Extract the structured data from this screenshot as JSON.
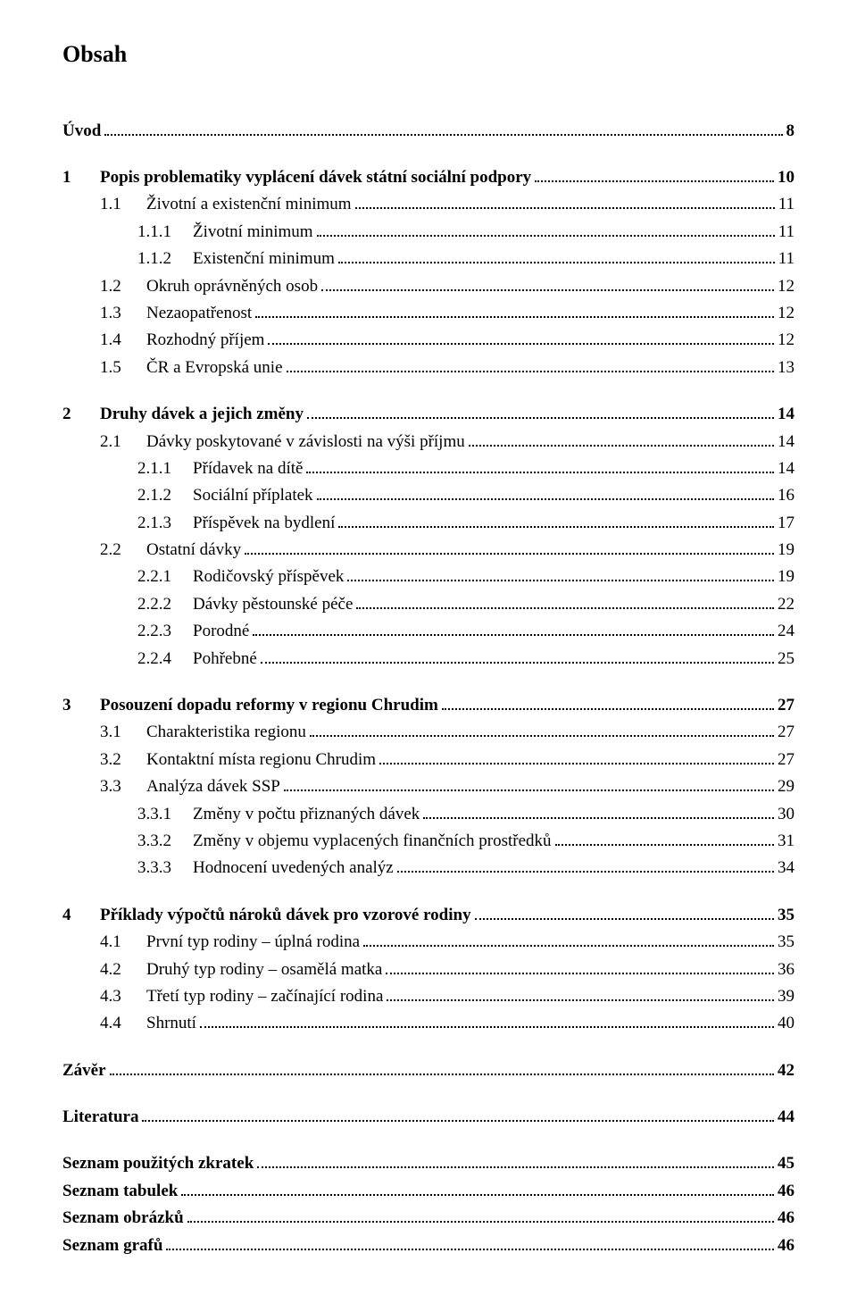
{
  "title": "Obsah",
  "entries": [
    {
      "num": "",
      "label": "Úvod",
      "page": "8",
      "bold": true,
      "indent": 0,
      "gapBefore": true
    },
    {
      "num": "1",
      "label": "Popis problematiky vyplácení dávek státní sociální podpory",
      "page": "10",
      "bold": true,
      "indent": 0,
      "gapBefore": true
    },
    {
      "num": "1.1",
      "label": "Životní a existenční minimum",
      "page": "11",
      "bold": false,
      "indent": 1
    },
    {
      "num": "1.1.1",
      "label": "Životní minimum",
      "page": "11",
      "bold": false,
      "indent": 2
    },
    {
      "num": "1.1.2",
      "label": "Existenční minimum",
      "page": "11",
      "bold": false,
      "indent": 2
    },
    {
      "num": "1.2",
      "label": "Okruh oprávněných osob",
      "page": "12",
      "bold": false,
      "indent": 1
    },
    {
      "num": "1.3",
      "label": "Nezaopatřenost",
      "page": "12",
      "bold": false,
      "indent": 1
    },
    {
      "num": "1.4",
      "label": "Rozhodný příjem",
      "page": "12",
      "bold": false,
      "indent": 1
    },
    {
      "num": "1.5",
      "label": "ČR a Evropská unie",
      "page": "13",
      "bold": false,
      "indent": 1
    },
    {
      "num": "2",
      "label": "Druhy dávek a jejich změny",
      "page": "14",
      "bold": true,
      "indent": 0,
      "gapBefore": true
    },
    {
      "num": "2.1",
      "label": "Dávky poskytované v závislosti na výši příjmu",
      "page": "14",
      "bold": false,
      "indent": 1
    },
    {
      "num": "2.1.1",
      "label": "Přídavek na dítě",
      "page": "14",
      "bold": false,
      "indent": 2
    },
    {
      "num": "2.1.2",
      "label": "Sociální příplatek",
      "page": "16",
      "bold": false,
      "indent": 2
    },
    {
      "num": "2.1.3",
      "label": "Příspěvek na bydlení",
      "page": "17",
      "bold": false,
      "indent": 2
    },
    {
      "num": "2.2",
      "label": "Ostatní dávky",
      "page": "19",
      "bold": false,
      "indent": 1
    },
    {
      "num": "2.2.1",
      "label": "Rodičovský příspěvek",
      "page": "19",
      "bold": false,
      "indent": 2
    },
    {
      "num": "2.2.2",
      "label": "Dávky pěstounské péče",
      "page": "22",
      "bold": false,
      "indent": 2
    },
    {
      "num": "2.2.3",
      "label": "Porodné",
      "page": "24",
      "bold": false,
      "indent": 2
    },
    {
      "num": "2.2.4",
      "label": "Pohřebné",
      "page": "25",
      "bold": false,
      "indent": 2
    },
    {
      "num": "3",
      "label": "Posouzení dopadu reformy v regionu Chrudim",
      "page": "27",
      "bold": true,
      "indent": 0,
      "gapBefore": true
    },
    {
      "num": "3.1",
      "label": "Charakteristika regionu",
      "page": "27",
      "bold": false,
      "indent": 1
    },
    {
      "num": "3.2",
      "label": "Kontaktní místa regionu Chrudim",
      "page": "27",
      "bold": false,
      "indent": 1
    },
    {
      "num": "3.3",
      "label": "Analýza dávek SSP",
      "page": "29",
      "bold": false,
      "indent": 1
    },
    {
      "num": "3.3.1",
      "label": "Změny v počtu přiznaných dávek",
      "page": "30",
      "bold": false,
      "indent": 2
    },
    {
      "num": "3.3.2",
      "label": "Změny v objemu vyplacených finančních prostředků",
      "page": "31",
      "bold": false,
      "indent": 2
    },
    {
      "num": "3.3.3",
      "label": "Hodnocení uvedených analýz",
      "page": "34",
      "bold": false,
      "indent": 2
    },
    {
      "num": "4",
      "label": "Příklady výpočtů nároků dávek pro vzorové rodiny",
      "page": "35",
      "bold": true,
      "indent": 0,
      "gapBefore": true
    },
    {
      "num": "4.1",
      "label": "První typ rodiny – úplná rodina",
      "page": "35",
      "bold": false,
      "indent": 1
    },
    {
      "num": "4.2",
      "label": "Druhý typ rodiny – osamělá matka",
      "page": "36",
      "bold": false,
      "indent": 1
    },
    {
      "num": "4.3",
      "label": "Třetí typ rodiny – začínající rodina",
      "page": "39",
      "bold": false,
      "indent": 1
    },
    {
      "num": "4.4",
      "label": "Shrnutí",
      "page": "40",
      "bold": false,
      "indent": 1
    },
    {
      "num": "",
      "label": "Závěr",
      "page": "42",
      "bold": true,
      "indent": 0,
      "gapBefore": true
    },
    {
      "num": "",
      "label": "Literatura",
      "page": "44",
      "bold": true,
      "indent": 0,
      "gapBefore": true
    },
    {
      "num": "",
      "label": "Seznam použitých zkratek",
      "page": "45",
      "bold": true,
      "indent": 0,
      "gapBefore": true
    },
    {
      "num": "",
      "label": "Seznam tabulek",
      "page": "46",
      "bold": true,
      "indent": 0
    },
    {
      "num": "",
      "label": "Seznam obrázků",
      "page": "46",
      "bold": true,
      "indent": 0
    },
    {
      "num": "",
      "label": "Seznam grafů",
      "page": "46",
      "bold": true,
      "indent": 0
    }
  ]
}
